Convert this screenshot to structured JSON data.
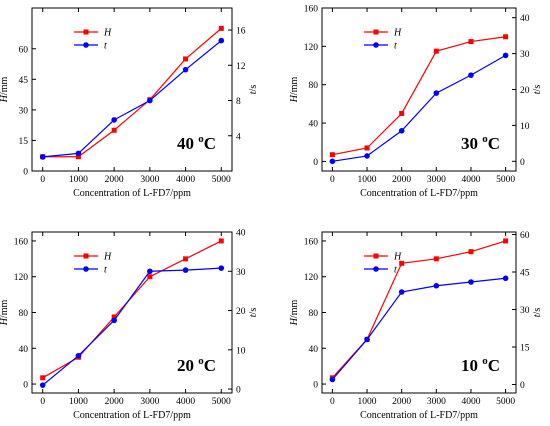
{
  "chart_data": [
    {
      "type": "line",
      "annotation": {
        "number": "40",
        "superscript": "o",
        "unit": "C"
      },
      "xlabel": "Concentration of L-FD7/ppm",
      "ylabel_left": {
        "main": "H",
        "unit": "/mm"
      },
      "ylabel_right": {
        "main": "t",
        "unit": "/s"
      },
      "categories": [
        "0",
        "1000",
        "2000",
        "3000",
        "4000",
        "5000"
      ],
      "x": [
        0,
        1000,
        2000,
        3000,
        4000,
        5000
      ],
      "xlim": [
        -300,
        5300
      ],
      "left_axis": {
        "lim": [
          0,
          80
        ],
        "ticks": [
          0,
          15,
          30,
          45,
          60
        ]
      },
      "right_axis": {
        "lim": [
          0,
          18.5
        ],
        "ticks": [
          4,
          8,
          12,
          16
        ]
      },
      "series": [
        {
          "name": "H",
          "axis": "left",
          "color": "#ff0000",
          "marker": "square",
          "values": [
            7,
            7,
            20,
            35,
            55,
            70
          ]
        },
        {
          "name": "t",
          "axis": "right",
          "color": "#0000ff",
          "marker": "circle",
          "values": [
            1.6,
            2.0,
            5.8,
            8.0,
            11.5,
            14.8
          ]
        }
      ],
      "legend_position": "top-left"
    },
    {
      "type": "line",
      "annotation": {
        "number": "30",
        "superscript": "o",
        "unit": "C"
      },
      "xlabel": "Concentration of L-FD7/ppm",
      "ylabel_left": {
        "main": "H",
        "unit": "/mm"
      },
      "ylabel_right": {
        "main": "t",
        "unit": "/s"
      },
      "categories": [
        "0",
        "1000",
        "2000",
        "3000",
        "4000",
        "5000"
      ],
      "x": [
        0,
        1000,
        2000,
        3000,
        4000,
        5000
      ],
      "xlim": [
        -300,
        5300
      ],
      "left_axis": {
        "lim": [
          -10,
          160
        ],
        "ticks": [
          0,
          40,
          80,
          120,
          160
        ]
      },
      "right_axis": {
        "lim": [
          -2.7,
          42.7
        ],
        "ticks": [
          0,
          10,
          20,
          30,
          40
        ]
      },
      "series": [
        {
          "name": "H",
          "axis": "left",
          "color": "#ff0000",
          "marker": "square",
          "values": [
            7,
            14,
            50,
            115,
            125,
            130
          ]
        },
        {
          "name": "t",
          "axis": "right",
          "color": "#0000ff",
          "marker": "circle",
          "values": [
            0,
            1.5,
            8.5,
            19,
            24,
            29.5
          ]
        }
      ],
      "legend_position": "top-left"
    },
    {
      "type": "line",
      "annotation": {
        "number": "20",
        "superscript": "o",
        "unit": "C"
      },
      "xlabel": "Concentration of L-FD7/ppm",
      "ylabel_left": {
        "main": "H",
        "unit": "/mm"
      },
      "ylabel_right": {
        "main": "t",
        "unit": "/s"
      },
      "categories": [
        "0",
        "1000",
        "2000",
        "3000",
        "4000",
        "5000"
      ],
      "x": [
        0,
        1000,
        2000,
        3000,
        4000,
        5000
      ],
      "xlim": [
        -300,
        5300
      ],
      "left_axis": {
        "lim": [
          -10,
          170
        ],
        "ticks": [
          0,
          40,
          80,
          120,
          160
        ]
      },
      "right_axis": {
        "lim": [
          -1,
          40
        ],
        "ticks": [
          0,
          10,
          20,
          30,
          40
        ]
      },
      "series": [
        {
          "name": "H",
          "axis": "left",
          "color": "#ff0000",
          "marker": "square",
          "values": [
            7,
            30,
            75,
            120,
            140,
            160
          ]
        },
        {
          "name": "t",
          "axis": "right",
          "color": "#0000ff",
          "marker": "circle",
          "values": [
            1,
            8.5,
            17.5,
            30,
            30.3,
            30.8
          ]
        }
      ],
      "legend_position": "top-left"
    },
    {
      "type": "line",
      "annotation": {
        "number": "10",
        "superscript": "o",
        "unit": "C"
      },
      "xlabel": "Concentration of L-FD7/ppm",
      "ylabel_left": {
        "main": "H",
        "unit": "/mm"
      },
      "ylabel_right": {
        "main": "t",
        "unit": "/s"
      },
      "categories": [
        "0",
        "1000",
        "2000",
        "3000",
        "4000",
        "5000"
      ],
      "x": [
        0,
        1000,
        2000,
        3000,
        4000,
        5000
      ],
      "xlim": [
        -300,
        5300
      ],
      "left_axis": {
        "lim": [
          -10,
          170
        ],
        "ticks": [
          0,
          40,
          80,
          120,
          160
        ]
      },
      "right_axis": {
        "lim": [
          -3.4,
          61
        ],
        "ticks": [
          0,
          15,
          30,
          45,
          60
        ]
      },
      "series": [
        {
          "name": "H",
          "axis": "left",
          "color": "#ff0000",
          "marker": "square",
          "values": [
            7,
            50,
            135,
            140,
            148,
            160
          ]
        },
        {
          "name": "t",
          "axis": "right",
          "color": "#0000ff",
          "marker": "circle",
          "values": [
            2,
            18,
            37,
            39.5,
            41,
            42.5
          ]
        }
      ],
      "legend_position": "top-left"
    }
  ]
}
